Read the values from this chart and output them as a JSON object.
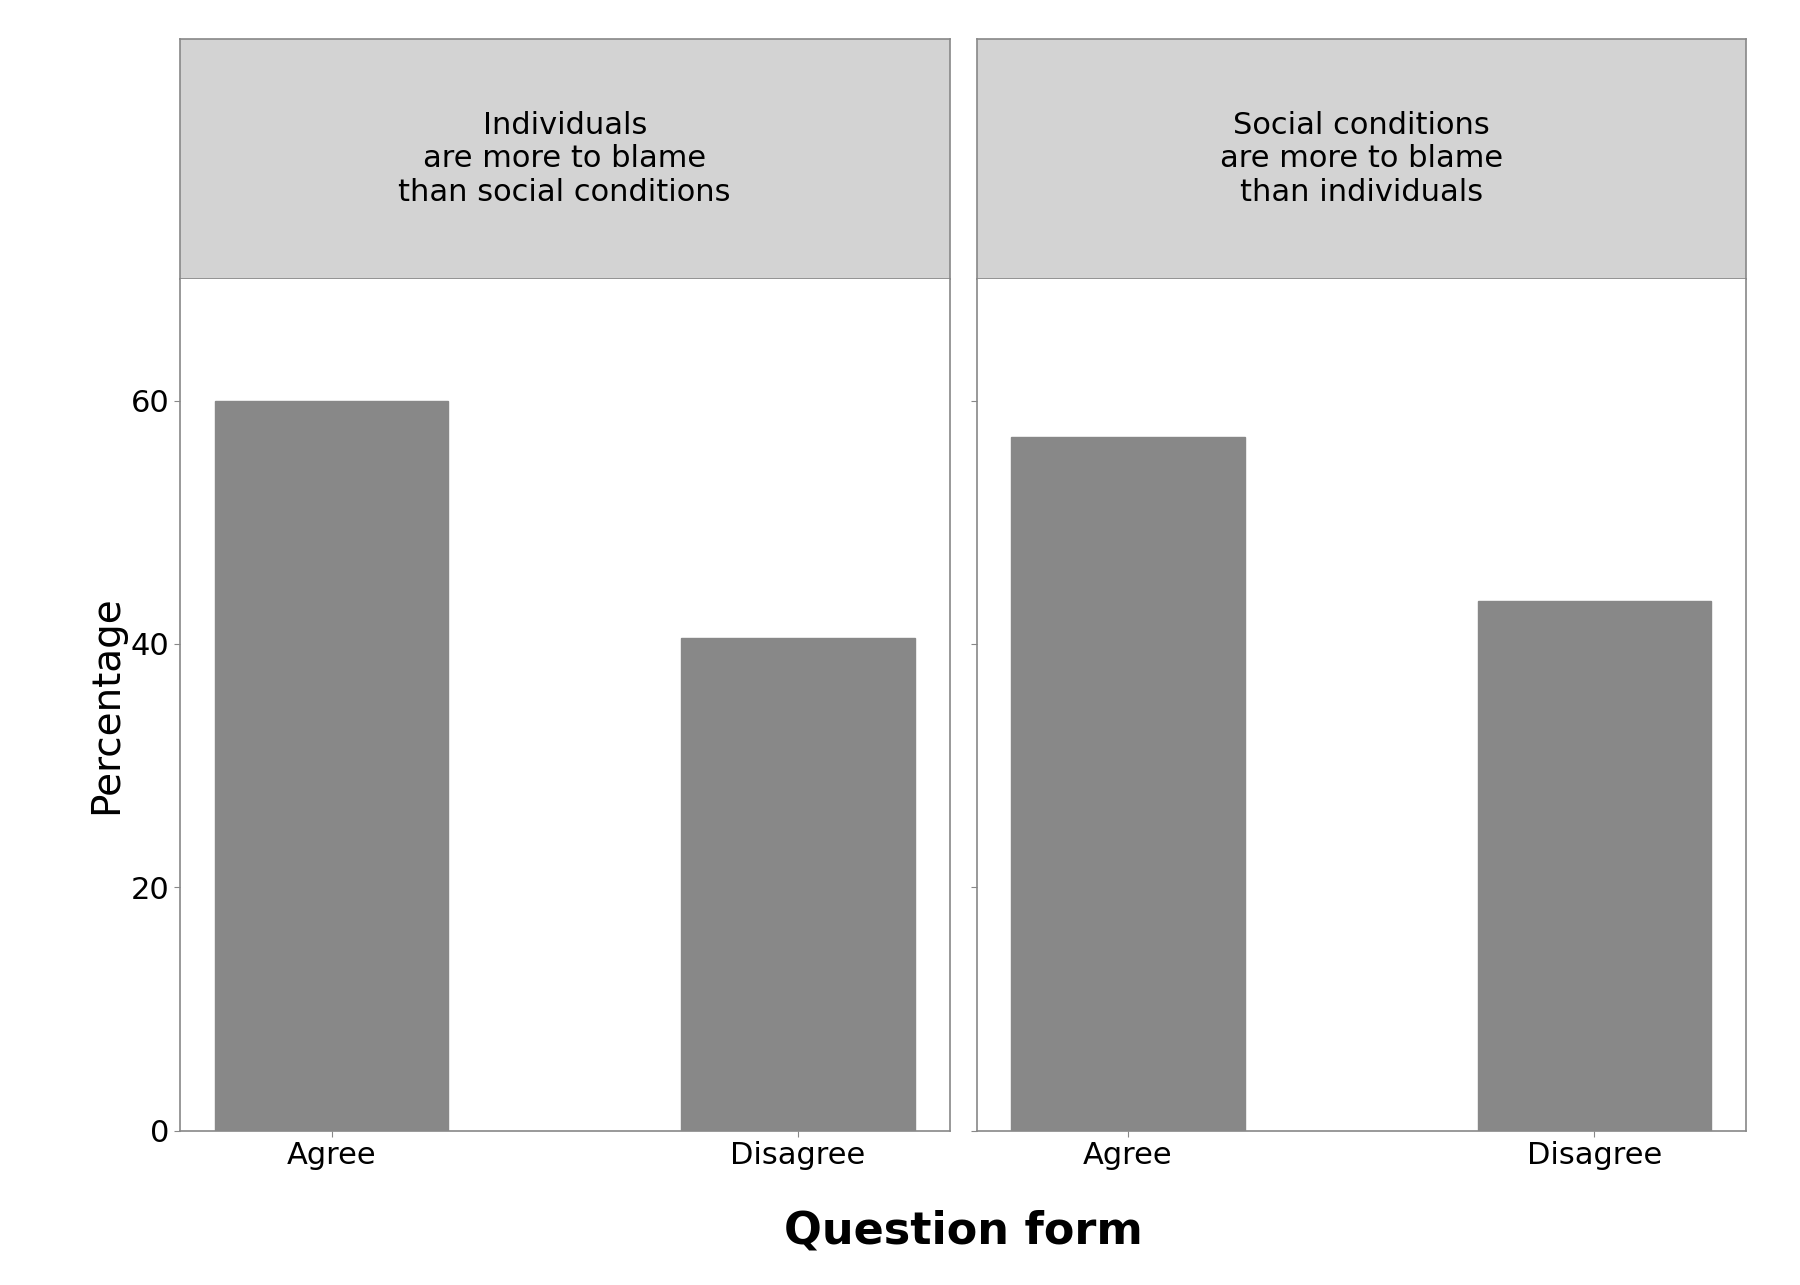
{
  "panels": [
    {
      "title": "Individuals\nare more to blame\nthan social conditions",
      "categories": [
        "Agree",
        "Disagree"
      ],
      "values": [
        60,
        40.5
      ]
    },
    {
      "title": "Social conditions\nare more to blame\nthan individuals",
      "categories": [
        "Agree",
        "Disagree"
      ],
      "values": [
        57,
        43.5
      ]
    }
  ],
  "ylabel": "Percentage",
  "xlabel": "Question form",
  "ylim": [
    0,
    70
  ],
  "yticks": [
    0,
    20,
    40,
    60
  ],
  "bar_color": "#888888",
  "bar_width": 0.5,
  "title_bg_color": "#d3d3d3",
  "title_fontsize": 22,
  "axis_label_fontsize": 28,
  "tick_fontsize": 22,
  "fig_bg_color": "#ffffff",
  "spine_color": "#888888",
  "title_border_color": "#aaaaaa"
}
